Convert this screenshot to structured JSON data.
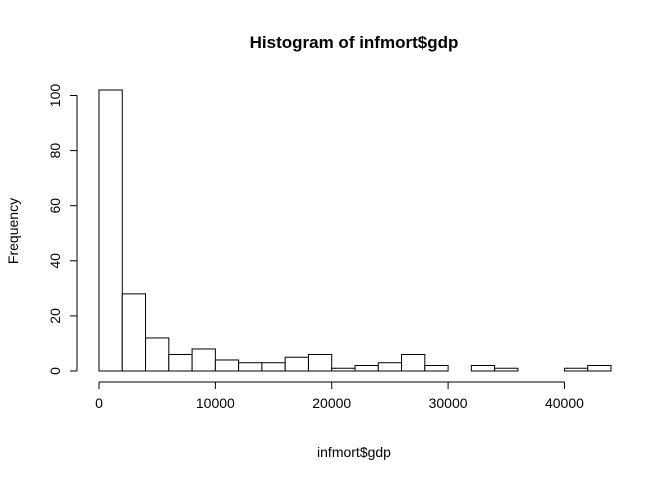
{
  "chart_data": {
    "type": "bar",
    "title": "Histogram of infmort$gdp",
    "xlabel": "infmort$gdp",
    "ylabel": "Frequency",
    "bin_width": 2000,
    "bin_edges": [
      0,
      2000,
      4000,
      6000,
      8000,
      10000,
      12000,
      14000,
      16000,
      18000,
      20000,
      22000,
      24000,
      26000,
      28000,
      30000,
      32000,
      34000,
      36000,
      38000,
      40000,
      42000,
      44000
    ],
    "values": [
      102,
      28,
      12,
      6,
      8,
      4,
      3,
      3,
      5,
      6,
      1,
      2,
      3,
      6,
      2,
      0,
      2,
      1,
      0,
      0,
      1,
      2
    ],
    "xlim": [
      0,
      44000
    ],
    "ylim": [
      0,
      102
    ],
    "x_ticks": [
      "0",
      "10000",
      "20000",
      "30000",
      "40000"
    ],
    "y_ticks": [
      "0",
      "20",
      "40",
      "60",
      "80",
      "100"
    ],
    "grid": false,
    "legend": "none",
    "bar_fill": "#ffffff",
    "bar_stroke": "#000000"
  }
}
